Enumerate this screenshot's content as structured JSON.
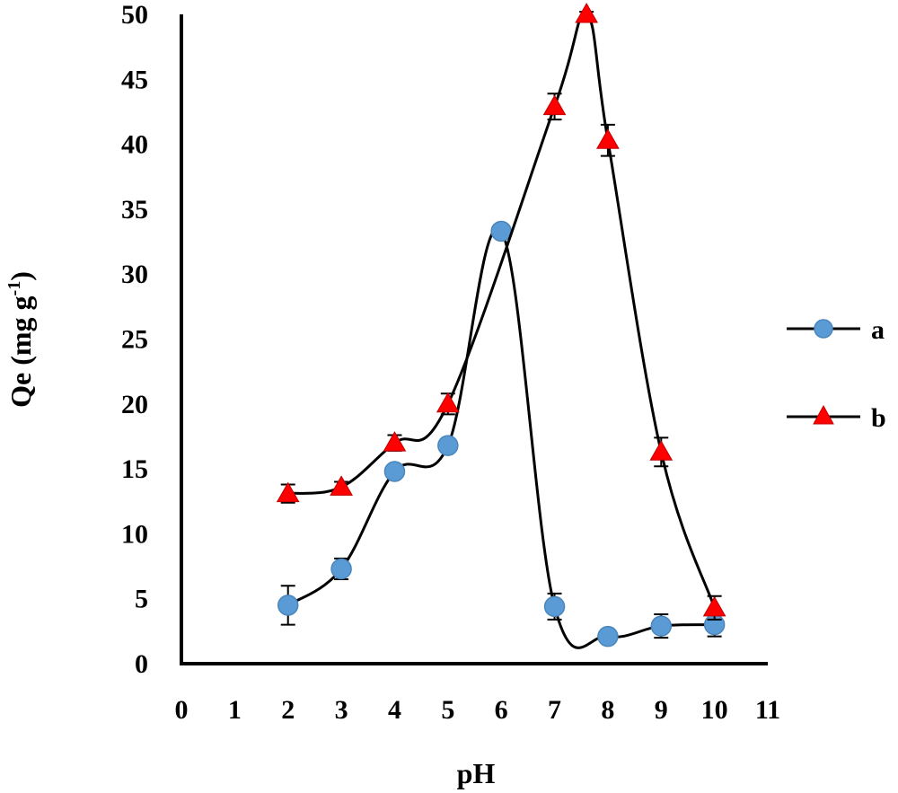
{
  "chart_data": {
    "type": "line",
    "title": "",
    "xlabel": "pH",
    "ylabel": "Qe (mg g",
    "ylabel_superscript": "-1",
    "ylabel_suffix": ")",
    "xlim": [
      0,
      11
    ],
    "ylim": [
      0,
      50
    ],
    "xticks": [
      0,
      1,
      2,
      3,
      4,
      5,
      6,
      7,
      8,
      9,
      10,
      11
    ],
    "yticks": [
      0,
      5,
      10,
      15,
      20,
      25,
      30,
      35,
      40,
      45,
      50
    ],
    "grid": false,
    "legend_position": "right",
    "series": [
      {
        "name": "a",
        "marker": "circle",
        "color": "#5B9BD5",
        "x": [
          2,
          3,
          4,
          5,
          6,
          7,
          8,
          9,
          10
        ],
        "y": [
          4.5,
          7.3,
          14.8,
          16.8,
          33.3,
          4.4,
          2.1,
          2.9,
          3.0
        ],
        "err": [
          1.5,
          0.8,
          0.4,
          0.5,
          0.3,
          1.0,
          0.3,
          0.9,
          0.9
        ]
      },
      {
        "name": "b",
        "marker": "triangle",
        "color": "#FF0000",
        "x": [
          2,
          3,
          4,
          5,
          7,
          7.6,
          8,
          9,
          10
        ],
        "y": [
          13.1,
          13.6,
          17.0,
          20.0,
          42.9,
          50.0,
          40.3,
          16.3,
          4.3
        ],
        "err": [
          0.7,
          0.4,
          0.6,
          0.8,
          1.0,
          0.2,
          1.2,
          1.1,
          0.9
        ]
      }
    ]
  }
}
